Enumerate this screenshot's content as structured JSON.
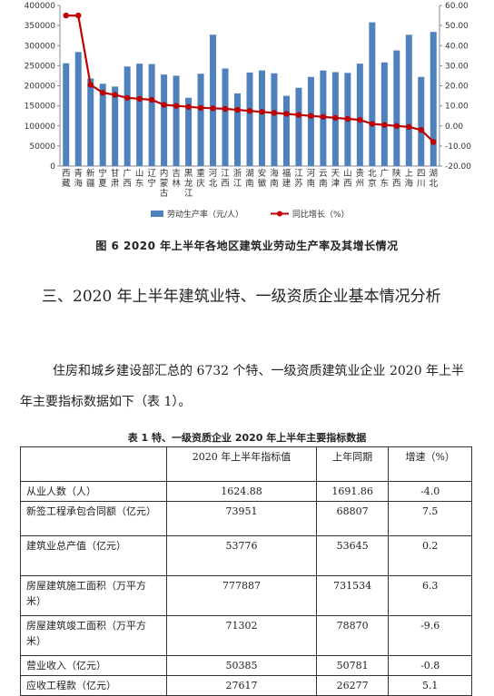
{
  "chart_data": {
    "type": "bar",
    "categories": [
      "西藏",
      "青海",
      "新疆",
      "宁夏",
      "甘肃",
      "广西",
      "山东",
      "辽宁",
      "内蒙古",
      "吉林",
      "黑龙江",
      "重庆",
      "河北",
      "江西",
      "浙江",
      "湖南",
      "安徽",
      "海南",
      "福建",
      "江苏",
      "河南",
      "云南",
      "天津",
      "山西",
      "贵州",
      "北京",
      "广东",
      "陕西",
      "上海",
      "四川",
      "湖北"
    ],
    "category_lines": [
      [
        "西",
        "藏"
      ],
      [
        "青",
        "海"
      ],
      [
        "新",
        "疆"
      ],
      [
        "宁",
        "夏"
      ],
      [
        "甘",
        "肃"
      ],
      [
        "广",
        "西"
      ],
      [
        "山",
        "东"
      ],
      [
        "辽",
        "宁"
      ],
      [
        "内",
        "蒙",
        "古"
      ],
      [
        "吉",
        "林"
      ],
      [
        "黑",
        "龙",
        "江"
      ],
      [
        "重",
        "庆"
      ],
      [
        "河",
        "北"
      ],
      [
        "江",
        "西"
      ],
      [
        "浙",
        "江"
      ],
      [
        "湖",
        "南"
      ],
      [
        "安",
        "徽"
      ],
      [
        "海",
        "南"
      ],
      [
        "福",
        "建"
      ],
      [
        "江",
        "苏"
      ],
      [
        "河",
        "南"
      ],
      [
        "云",
        "南"
      ],
      [
        "天",
        "津"
      ],
      [
        "山",
        "西"
      ],
      [
        "贵",
        "州"
      ],
      [
        "北",
        "京"
      ],
      [
        "广",
        "东"
      ],
      [
        "陕",
        "西"
      ],
      [
        "上",
        "海"
      ],
      [
        "四",
        "川"
      ],
      [
        "湖",
        "北"
      ]
    ],
    "series": [
      {
        "name": "劳动生产率（元/人）",
        "axis": "left",
        "type": "bar",
        "color": "#4f81bd",
        "values": [
          256000,
          284000,
          218000,
          205000,
          198000,
          248000,
          255000,
          254000,
          228000,
          225000,
          170000,
          230000,
          327000,
          243000,
          181000,
          233000,
          238000,
          231000,
          175000,
          195000,
          222000,
          238000,
          234000,
          232000,
          255000,
          358000,
          258000,
          288000,
          327000,
          222000,
          334000
        ]
      },
      {
        "name": "同比增长（%）",
        "axis": "right",
        "type": "line",
        "color": "#c00000",
        "values": [
          55.0,
          55.0,
          20.5,
          16.5,
          15.5,
          14.0,
          13.5,
          13.0,
          10.5,
          10.0,
          9.5,
          9.0,
          8.8,
          8.5,
          8.0,
          7.5,
          7.0,
          6.5,
          6.0,
          5.5,
          5.0,
          4.5,
          4.0,
          3.5,
          3.0,
          1.0,
          0.5,
          0.0,
          -0.5,
          -2.0,
          -8.0
        ]
      }
    ],
    "left_axis": {
      "min": 0,
      "max": 400000,
      "ticks": [
        "0",
        "50000",
        "100000",
        "150000",
        "200000",
        "250000",
        "300000",
        "350000",
        "400000"
      ]
    },
    "right_axis": {
      "min": -20,
      "max": 60,
      "ticks": [
        "-20.00",
        "-10.00",
        "0.00",
        "10.00",
        "20.00",
        "30.00",
        "40.00",
        "50.00",
        "60.00"
      ]
    },
    "legend_position": "bottom"
  },
  "figure_caption": "图 6    2020 年上半年各地区建筑业劳动生产率及其增长情况",
  "section_heading": "三、2020 年上半年建筑业特、一级资质企业基本情况分析",
  "paragraph": "住房和城乡建设部汇总的 6732 个特、一级资质建筑业企业 2020 年上半年主要指标数据如下（表 1）。",
  "table_caption": "表 1    特、一级资质企业 2020 年上半年主要指标数据",
  "table": {
    "headers": [
      "",
      "2020 年上半年指标值",
      "上年同期",
      "增速（%）"
    ],
    "rows": [
      {
        "label": "从业人数（人）",
        "current": "1624.88",
        "previous": "1691.86",
        "growth": "-4.0"
      },
      {
        "label": "新签工程承包合同额（亿元）",
        "current": "73951",
        "previous": "68807",
        "growth": "7.5"
      },
      {
        "label": "建筑业总产值（亿元）",
        "current": "53776",
        "previous": "53645",
        "growth": "0.2"
      },
      {
        "label": "房屋建筑施工面积（万平方米）",
        "current": "777887",
        "previous": "731534",
        "growth": "6.3"
      },
      {
        "label": "房屋建筑竣工面积（万平方米）",
        "current": "71302",
        "previous": "78870",
        "growth": "-9.6"
      },
      {
        "label": "营业收入（亿元）",
        "current": "50385",
        "previous": "50781",
        "growth": "-0.8"
      },
      {
        "label": "应收工程款（亿元）",
        "current": "27617",
        "previous": "26277",
        "growth": "5.1"
      }
    ]
  }
}
